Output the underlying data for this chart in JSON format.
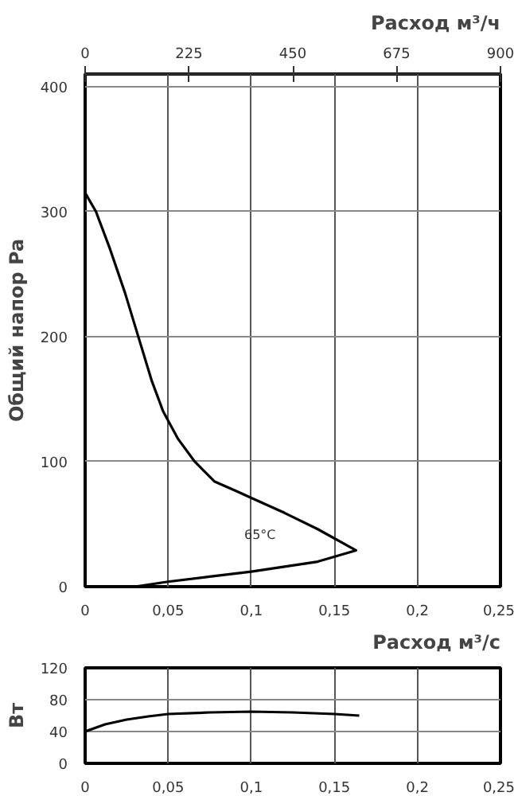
{
  "chart_data": [
    {
      "type": "line",
      "xlabel": "Расход м³/с",
      "ylabel": "Общий напор Pa",
      "x2label": "Расход м³/ч",
      "xlim": [
        0,
        0.25
      ],
      "xticks": [
        0,
        {
          "value": 0.05,
          "label": "0,05"
        },
        {
          "value": 0.1,
          "label": "0,1"
        },
        {
          "value": 0.15,
          "label": "0,15"
        },
        {
          "value": 0.2,
          "label": "0,2"
        },
        {
          "value": 0.25,
          "label": "0,25"
        }
      ],
      "x2lim": [
        0,
        900
      ],
      "x2ticks": [
        0,
        225,
        450,
        675,
        900
      ],
      "ylim": [
        0,
        410
      ],
      "yticks": [
        0,
        100,
        200,
        300,
        400
      ],
      "grid": true,
      "marker": "none",
      "line_style": "solid",
      "series": [
        {
          "color": "#000000",
          "x": [
            0,
            0.0065,
            0.015,
            0.024,
            0.032,
            0.04,
            0.047,
            0.056,
            0.066,
            0.078,
            0.09,
            0.1,
            0.12,
            0.14,
            0.163,
            0.14,
            0.12,
            0.1,
            0.075,
            0.05,
            0.03
          ],
          "values": [
            315,
            300,
            270,
            235,
            200,
            165,
            140,
            118,
            100,
            84,
            77,
            71,
            59,
            46,
            29,
            20,
            16,
            12,
            8,
            4,
            0
          ]
        }
      ],
      "annotations": [
        "65°C"
      ]
    },
    {
      "type": "line",
      "ylabel": "Вт",
      "xlim": [
        0,
        0.25
      ],
      "xticks": [
        0,
        {
          "value": 0.05,
          "label": "0,05"
        },
        {
          "value": 0.1,
          "label": "0,1"
        },
        {
          "value": 0.15,
          "label": "0,15"
        },
        {
          "value": 0.2,
          "label": "0,2"
        },
        {
          "value": 0.25,
          "label": "0,25"
        }
      ],
      "ylim": [
        0,
        120
      ],
      "yticks": [
        0,
        40,
        80,
        120
      ],
      "grid": true,
      "marker": "none",
      "line_style": "solid",
      "series": [
        {
          "color": "#000000",
          "x": [
            0,
            0.012,
            0.025,
            0.038,
            0.05,
            0.075,
            0.1,
            0.125,
            0.15,
            0.165
          ],
          "values": [
            40,
            49,
            55,
            59,
            62,
            64,
            65,
            64,
            62,
            60
          ]
        }
      ]
    }
  ]
}
